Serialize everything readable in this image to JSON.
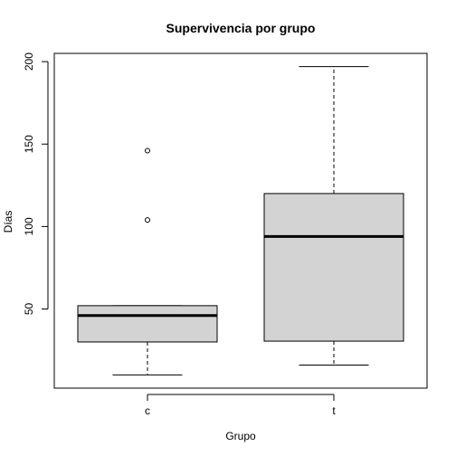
{
  "chart_data": {
    "type": "boxplot",
    "title": "Supervivencia por grupo",
    "xlabel": "Grupo",
    "ylabel": "Días",
    "ylim": [
      2,
      205
    ],
    "yticks": [
      50,
      100,
      150,
      200
    ],
    "categories": [
      "c",
      "t"
    ],
    "boxes": [
      {
        "category": "c",
        "whisker_low": 10,
        "q1": 30,
        "median": 46,
        "q3": 52,
        "whisker_high": 52,
        "outliers": [
          104,
          146
        ]
      },
      {
        "category": "t",
        "whisker_low": 16,
        "q1": 30.5,
        "median": 94,
        "q3": 120,
        "whisker_high": 197,
        "outliers": []
      }
    ],
    "colors": {
      "box_fill": "#d3d3d3",
      "stroke": "#000000"
    },
    "grid": false
  }
}
